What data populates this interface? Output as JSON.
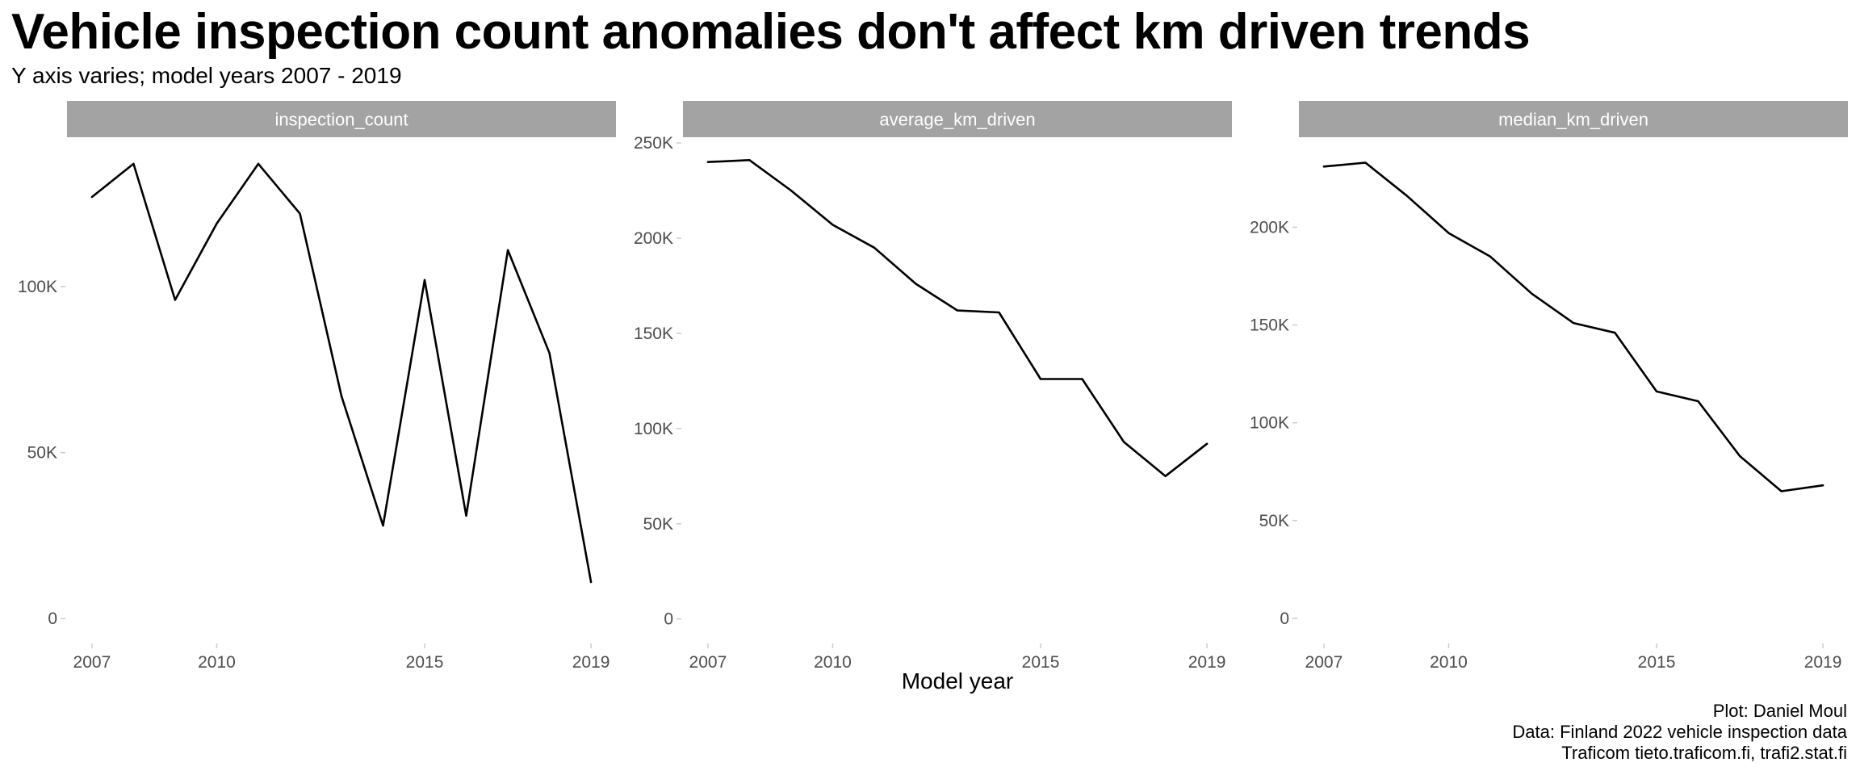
{
  "title": "Vehicle inspection count anomalies don't affect km driven trends",
  "subtitle": "Y axis varies; model years 2007 - 2019",
  "caption": [
    "Plot: Daniel Moul",
    "Data: Finland 2022 vehicle inspection data",
    "Traficom tieto.traficom.fi, trafi2.stat.fi"
  ],
  "chart_data": [
    {
      "type": "line",
      "facet": "inspection_count",
      "xlabel": "",
      "ylabel": "",
      "x": [
        2007,
        2008,
        2009,
        2010,
        2011,
        2012,
        2013,
        2014,
        2015,
        2016,
        2017,
        2018,
        2019
      ],
      "values": [
        127000,
        137000,
        96000,
        119000,
        137000,
        122000,
        67000,
        28000,
        102000,
        31000,
        111000,
        80000,
        11000
      ],
      "xticks": [
        2007,
        2010,
        2015,
        2019
      ],
      "xtick_labels": [
        "2007",
        "2010",
        "2015",
        "2019"
      ],
      "yticks": [
        0,
        50000,
        100000
      ],
      "ytick_labels": [
        "0",
        "50K",
        "100K"
      ],
      "xlim": [
        2006.4,
        2019.6
      ],
      "ylim": [
        -7000,
        145000
      ]
    },
    {
      "type": "line",
      "facet": "average_km_driven",
      "xlabel": "Model year",
      "ylabel": "",
      "x": [
        2007,
        2008,
        2009,
        2010,
        2011,
        2012,
        2013,
        2014,
        2015,
        2016,
        2017,
        2018,
        2019
      ],
      "values": [
        240000,
        241000,
        225000,
        207000,
        195000,
        176000,
        162000,
        161000,
        126000,
        126000,
        93000,
        75000,
        92000
      ],
      "xticks": [
        2007,
        2010,
        2015,
        2019
      ],
      "xtick_labels": [
        "2007",
        "2010",
        "2015",
        "2019"
      ],
      "yticks": [
        0,
        50000,
        100000,
        150000,
        200000,
        250000
      ],
      "ytick_labels": [
        "0",
        "50K",
        "100K",
        "150K",
        "200K",
        "250K"
      ],
      "xlim": [
        2006.4,
        2019.6
      ],
      "ylim": [
        -12000,
        253000
      ]
    },
    {
      "type": "line",
      "facet": "median_km_driven",
      "xlabel": "",
      "ylabel": "",
      "x": [
        2007,
        2008,
        2009,
        2010,
        2011,
        2012,
        2013,
        2014,
        2015,
        2016,
        2017,
        2018,
        2019
      ],
      "values": [
        231000,
        233000,
        216000,
        197000,
        185000,
        166000,
        151000,
        146000,
        116000,
        111000,
        83000,
        65000,
        68000
      ],
      "xticks": [
        2007,
        2010,
        2015,
        2019
      ],
      "xtick_labels": [
        "2007",
        "2010",
        "2015",
        "2019"
      ],
      "yticks": [
        0,
        50000,
        100000,
        150000,
        200000
      ],
      "ytick_labels": [
        "0",
        "50K",
        "100K",
        "150K",
        "200K"
      ],
      "xlim": [
        2006.4,
        2019.6
      ],
      "ylim": [
        -12000,
        246000
      ]
    }
  ],
  "colors": {
    "strip_fill": "#a3a3a3",
    "strip_text": "#ffffff",
    "line": "#000000",
    "tick_text": "#4d4d4d",
    "tick_mark": "#cccccc"
  }
}
